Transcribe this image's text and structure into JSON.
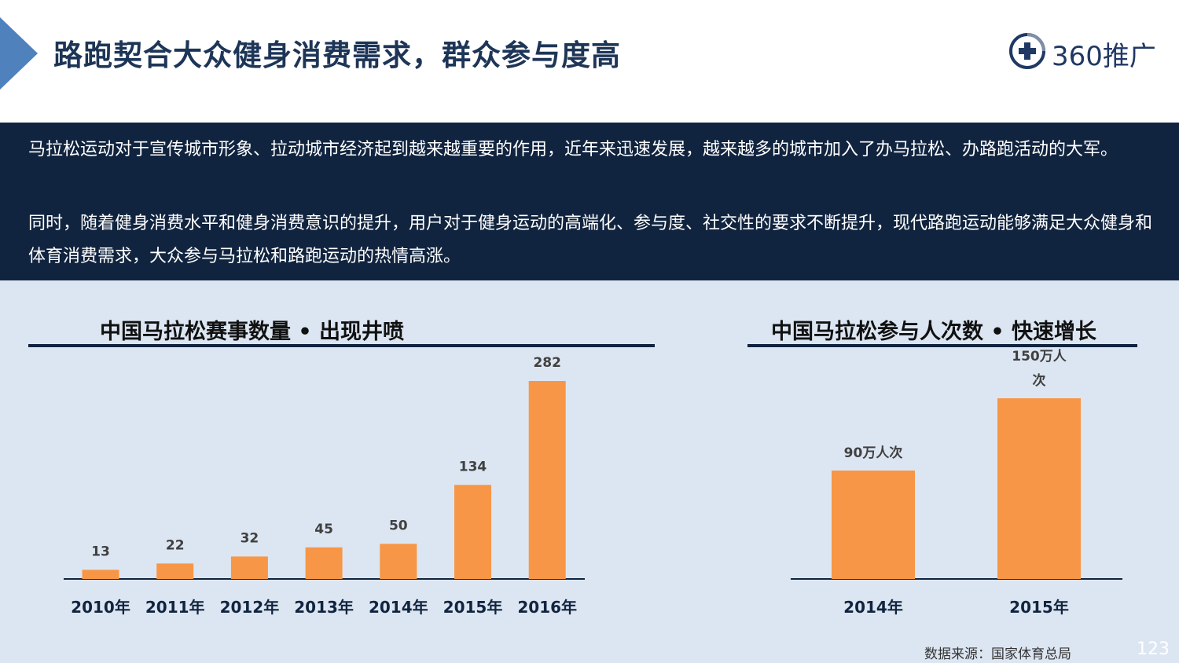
{
  "header": {
    "title": "路跑契合大众健身消费需求，群众参与度高",
    "logo_text": "360推广",
    "logo_icon": "plus-circle-icon",
    "accent_color": "#4f81bd"
  },
  "intro": {
    "paragraph1": "马拉松运动对于宣传城市形象、拉动城市经济起到越来越重要的作用，近年来迅速发展，越来越多的城市加入了办马拉松、办路跑活动的大军。",
    "paragraph2": "同时，随着健身消费水平和健身消费意识的提升，用户对于健身运动的高端化、参与度、社交性的要求不断提升，现代路跑运动能够满足大众健身和体育消费需求，大众参与马拉松和路跑运动的热情高涨。"
  },
  "chart_data": [
    {
      "type": "bar",
      "title": "中国马拉松赛事数量 • 出现井喷",
      "categories": [
        "2010年",
        "2011年",
        "2012年",
        "2013年",
        "2014年",
        "2015年",
        "2016年"
      ],
      "values": [
        13,
        22,
        32,
        45,
        50,
        134,
        282
      ],
      "value_labels": [
        "13",
        "22",
        "32",
        "45",
        "50",
        "134",
        "282"
      ],
      "ylim": [
        0,
        282
      ],
      "grid": false,
      "bar_color": "#f79646"
    },
    {
      "type": "bar",
      "title": "中国马拉松参与人次数 • 快速增长",
      "categories": [
        "2014年",
        "2015年"
      ],
      "values": [
        90,
        150
      ],
      "value_labels": [
        "90万人次",
        "150万人次"
      ],
      "ylim": [
        0,
        150
      ],
      "grid": false,
      "bar_color": "#f79646"
    }
  ],
  "footer": {
    "source": "数据来源：国家体育总局",
    "page_number": "123"
  }
}
